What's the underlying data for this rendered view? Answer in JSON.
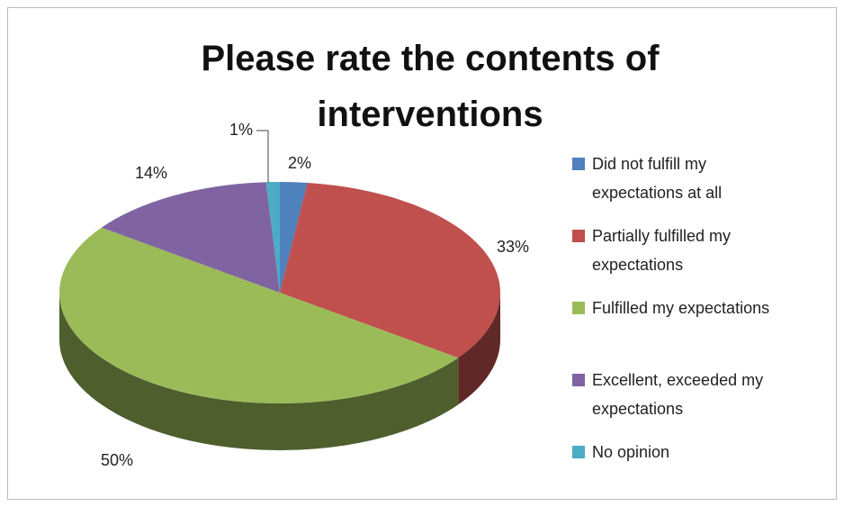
{
  "chart_data": {
    "type": "pie",
    "title": "Please rate the contents of interventions",
    "categories": [
      "Did not fulfill my expectations at all",
      "Partially fulfilled my expectations",
      "Fulfilled my expectations",
      "Excellent, exceeded my expectations",
      "No opinion"
    ],
    "values": [
      2,
      33,
      50,
      14,
      1
    ],
    "value_labels": [
      "2%",
      "33%",
      "50%",
      "14%",
      "1%"
    ],
    "colors": [
      "#4f81bd",
      "#c0504d",
      "#9bbb59",
      "#8064a2",
      "#4bacc6"
    ],
    "legend": "right"
  }
}
